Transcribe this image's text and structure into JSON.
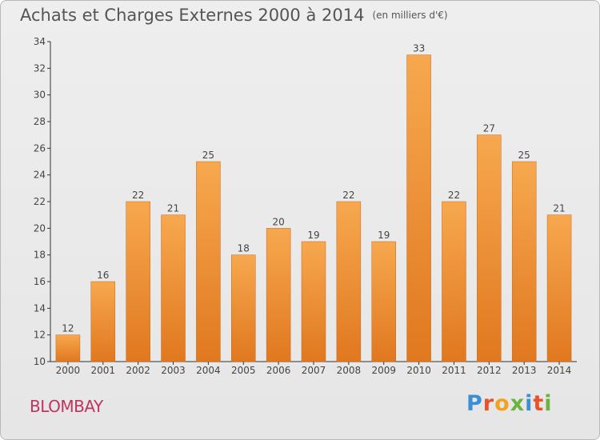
{
  "header": {
    "title": "Achats et Charges Externes 2000 à 2014",
    "unit": "(en milliers d'€)"
  },
  "footer": {
    "town": "BLOMBAY",
    "logo": "Proxiti"
  },
  "colors": {
    "bar_light": "#f7a84f",
    "bar_dark": "#e0781f",
    "bar_edge": "#c8661a",
    "town": "#c2335f"
  },
  "chart_data": {
    "type": "bar",
    "title": "Achats et Charges Externes 2000 à 2014",
    "categories": [
      "2000",
      "2001",
      "2002",
      "2003",
      "2004",
      "2005",
      "2006",
      "2007",
      "2008",
      "2009",
      "2010",
      "2011",
      "2012",
      "2013",
      "2014"
    ],
    "values": [
      12,
      16,
      22,
      21,
      25,
      18,
      20,
      19,
      22,
      19,
      33,
      22,
      27,
      25,
      21
    ],
    "ylim": [
      10,
      34
    ],
    "yticks": [
      10,
      12,
      14,
      16,
      18,
      20,
      22,
      24,
      26,
      28,
      30,
      32,
      34
    ],
    "grid": false,
    "data_labels": true
  }
}
